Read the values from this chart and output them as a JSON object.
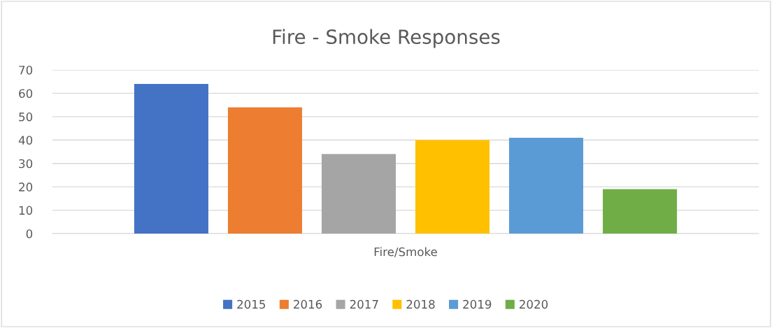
{
  "chart_data": {
    "type": "bar",
    "title": "Fire - Smoke Responses",
    "categories": [
      "Fire/Smoke"
    ],
    "series": [
      {
        "name": "2015",
        "color": "#4472c4",
        "values": [
          64
        ]
      },
      {
        "name": "2016",
        "color": "#ed7d31",
        "values": [
          54
        ]
      },
      {
        "name": "2017",
        "color": "#a5a5a5",
        "values": [
          34
        ]
      },
      {
        "name": "2018",
        "color": "#ffc000",
        "values": [
          40
        ]
      },
      {
        "name": "2019",
        "color": "#5b9bd5",
        "values": [
          41
        ]
      },
      {
        "name": "2020",
        "color": "#70ad47",
        "values": [
          19
        ]
      }
    ],
    "ylim": [
      0,
      70
    ],
    "yticks": [
      0,
      10,
      20,
      30,
      40,
      50,
      60,
      70
    ],
    "grid": "y",
    "legend": "bottom"
  }
}
